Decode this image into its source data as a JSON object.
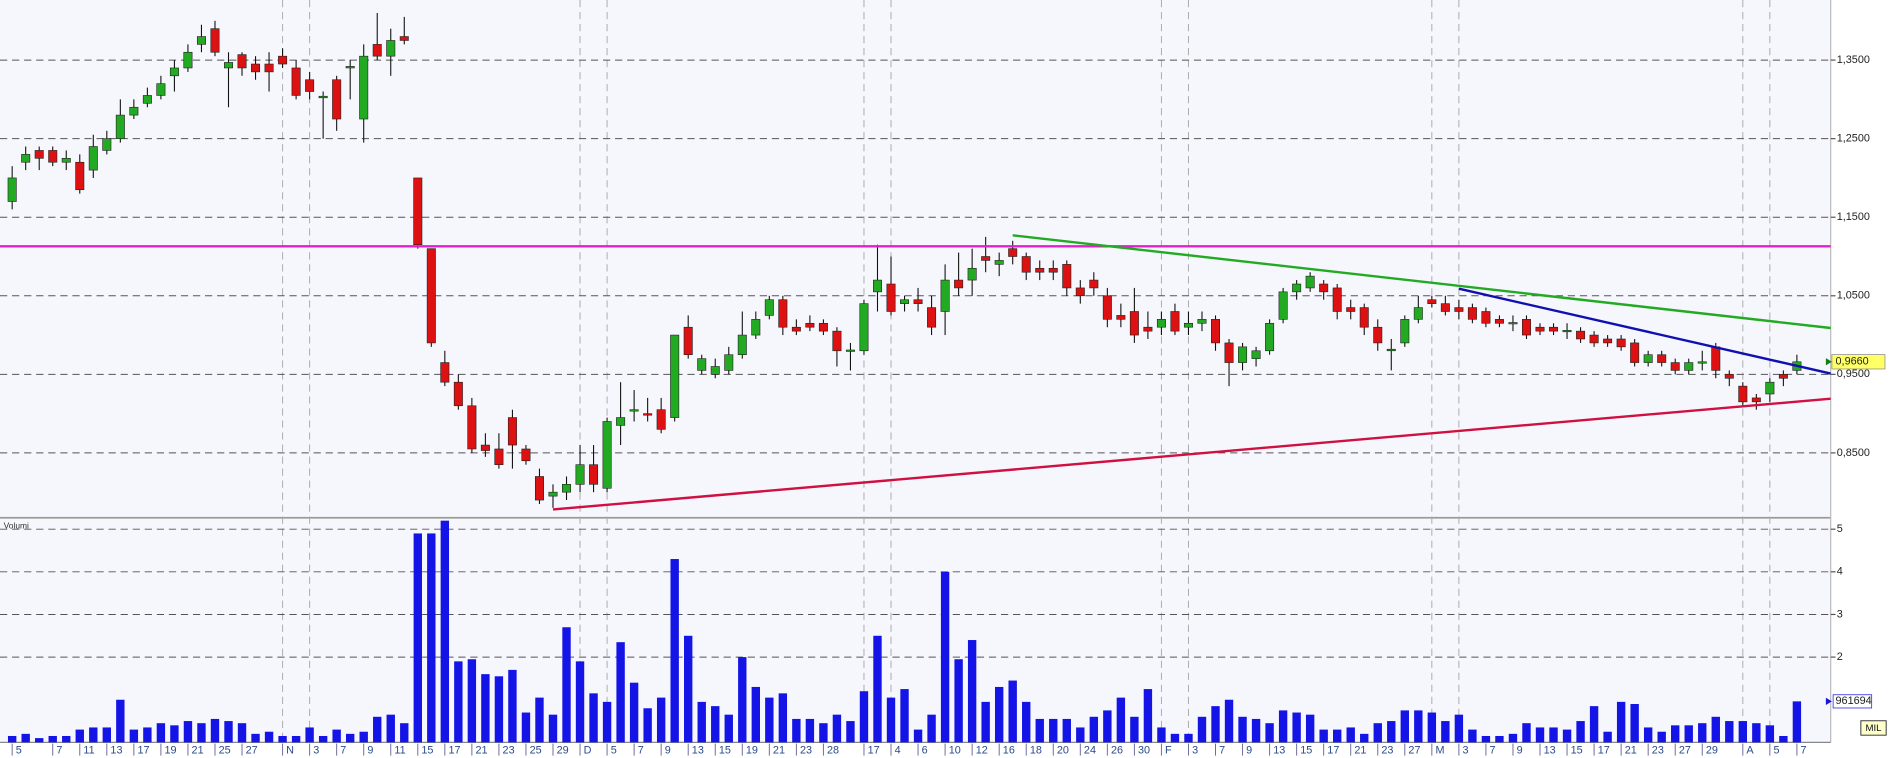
{
  "chart_data": [
    {
      "type": "candlestick",
      "categories": [
        "5",
        null,
        null,
        "7",
        null,
        "11",
        null,
        "13",
        null,
        "17",
        null,
        "19",
        null,
        "21",
        null,
        "25",
        null,
        "27",
        null,
        null,
        "N",
        null,
        "3",
        null,
        "7",
        null,
        "9",
        null,
        "11",
        null,
        "15",
        null,
        "17",
        null,
        "21",
        null,
        "23",
        null,
        "25",
        null,
        "29",
        null,
        "D",
        null,
        "5",
        null,
        "7",
        null,
        "9",
        null,
        "13",
        null,
        "15",
        null,
        "19",
        null,
        "21",
        null,
        "23",
        null,
        "28",
        null,
        null,
        "17",
        null,
        "4",
        null,
        "6",
        null,
        "10",
        null,
        "12",
        null,
        "16",
        null,
        "18",
        null,
        "20",
        null,
        "24",
        null,
        "26",
        null,
        "30",
        null,
        "F",
        null,
        "3",
        null,
        "7",
        null,
        "9",
        null,
        "13",
        null,
        "15",
        null,
        "17",
        null,
        "21",
        null,
        "23",
        null,
        "27",
        null,
        "M",
        null,
        "3",
        null,
        "7",
        null,
        "9",
        null,
        "13",
        null,
        "15",
        null,
        "17",
        null,
        "21",
        null,
        "23",
        null,
        "27",
        null,
        "29",
        null,
        null,
        "A",
        null,
        "5",
        null,
        "7"
      ],
      "ohlc": [
        [
          1.17,
          1.215,
          1.16,
          1.2
        ],
        [
          1.22,
          1.24,
          1.21,
          1.23
        ],
        [
          1.235,
          1.24,
          1.21,
          1.225
        ],
        [
          1.235,
          1.24,
          1.215,
          1.22
        ],
        [
          1.22,
          1.235,
          1.21,
          1.225
        ],
        [
          1.22,
          1.23,
          1.18,
          1.185
        ],
        [
          1.21,
          1.255,
          1.2,
          1.24
        ],
        [
          1.235,
          1.26,
          1.23,
          1.25
        ],
        [
          1.25,
          1.3,
          1.245,
          1.28
        ],
        [
          1.28,
          1.3,
          1.275,
          1.29
        ],
        [
          1.295,
          1.315,
          1.29,
          1.305
        ],
        [
          1.305,
          1.33,
          1.3,
          1.32
        ],
        [
          1.33,
          1.35,
          1.31,
          1.34
        ],
        [
          1.34,
          1.37,
          1.335,
          1.36
        ],
        [
          1.37,
          1.395,
          1.36,
          1.38
        ],
        [
          1.39,
          1.4,
          1.355,
          1.36
        ],
        [
          1.34,
          1.36,
          1.29,
          1.347
        ],
        [
          1.357,
          1.36,
          1.33,
          1.34
        ],
        [
          1.345,
          1.355,
          1.325,
          1.335
        ],
        [
          1.345,
          1.36,
          1.31,
          1.335
        ],
        [
          1.355,
          1.365,
          1.34,
          1.345
        ],
        [
          1.34,
          1.35,
          1.3,
          1.305
        ],
        [
          1.325,
          1.335,
          1.3,
          1.31
        ],
        [
          1.302,
          1.31,
          1.25,
          1.304
        ],
        [
          1.325,
          1.33,
          1.26,
          1.275
        ],
        [
          1.34,
          1.35,
          1.3,
          1.342
        ],
        [
          1.275,
          1.37,
          1.245,
          1.355
        ],
        [
          1.37,
          1.41,
          1.35,
          1.355
        ],
        [
          1.355,
          1.39,
          1.33,
          1.375
        ],
        [
          1.38,
          1.405,
          1.37,
          1.375
        ],
        [
          1.2,
          1.2,
          1.11,
          1.115
        ],
        [
          1.11,
          1.11,
          0.985,
          0.99
        ],
        [
          0.965,
          0.98,
          0.935,
          0.94
        ],
        [
          0.94,
          0.95,
          0.905,
          0.91
        ],
        [
          0.91,
          0.92,
          0.85,
          0.855
        ],
        [
          0.86,
          0.875,
          0.845,
          0.853
        ],
        [
          0.855,
          0.875,
          0.83,
          0.835
        ],
        [
          0.895,
          0.905,
          0.83,
          0.86
        ],
        [
          0.855,
          0.86,
          0.835,
          0.84
        ],
        [
          0.82,
          0.83,
          0.785,
          0.79
        ],
        [
          0.795,
          0.81,
          0.78,
          0.8
        ],
        [
          0.8,
          0.82,
          0.79,
          0.81
        ],
        [
          0.81,
          0.86,
          0.8,
          0.835
        ],
        [
          0.835,
          0.86,
          0.8,
          0.81
        ],
        [
          0.805,
          0.895,
          0.8,
          0.89
        ],
        [
          0.885,
          0.94,
          0.86,
          0.895
        ],
        [
          0.905,
          0.93,
          0.89,
          0.905
        ],
        [
          0.9,
          0.92,
          0.89,
          0.898
        ],
        [
          0.905,
          0.92,
          0.875,
          0.88
        ],
        [
          0.895,
          1.0,
          0.89,
          1.0
        ],
        [
          1.01,
          1.025,
          0.97,
          0.975
        ],
        [
          0.955,
          0.975,
          0.95,
          0.97
        ],
        [
          0.95,
          0.97,
          0.945,
          0.96
        ],
        [
          0.955,
          0.985,
          0.95,
          0.975
        ],
        [
          0.975,
          1.03,
          0.97,
          1.0
        ],
        [
          1.0,
          1.03,
          0.995,
          1.02
        ],
        [
          1.025,
          1.05,
          1.02,
          1.045
        ],
        [
          1.045,
          1.05,
          1.0,
          1.01
        ],
        [
          1.01,
          1.02,
          1.0,
          1.005
        ],
        [
          1.015,
          1.025,
          1.005,
          1.01
        ],
        [
          1.015,
          1.02,
          1.0,
          1.005
        ],
        [
          1.005,
          1.01,
          0.96,
          0.98
        ],
        [
          0.98,
          0.99,
          0.955,
          0.981
        ],
        [
          0.98,
          1.045,
          0.975,
          1.04
        ],
        [
          1.055,
          1.115,
          1.03,
          1.07
        ],
        [
          1.065,
          1.1,
          1.025,
          1.03
        ],
        [
          1.04,
          1.05,
          1.03,
          1.045
        ],
        [
          1.045,
          1.06,
          1.03,
          1.04
        ],
        [
          1.035,
          1.05,
          1.0,
          1.01
        ],
        [
          1.03,
          1.09,
          1.0,
          1.07
        ],
        [
          1.07,
          1.105,
          1.05,
          1.06
        ],
        [
          1.07,
          1.11,
          1.05,
          1.085
        ],
        [
          1.1,
          1.125,
          1.08,
          1.095
        ],
        [
          1.09,
          1.105,
          1.075,
          1.095
        ],
        [
          1.11,
          1.12,
          1.09,
          1.1
        ],
        [
          1.1,
          1.105,
          1.07,
          1.08
        ],
        [
          1.085,
          1.095,
          1.07,
          1.08
        ],
        [
          1.085,
          1.095,
          1.07,
          1.08
        ],
        [
          1.09,
          1.095,
          1.05,
          1.06
        ],
        [
          1.06,
          1.07,
          1.04,
          1.05
        ],
        [
          1.07,
          1.08,
          1.05,
          1.06
        ],
        [
          1.05,
          1.06,
          1.01,
          1.02
        ],
        [
          1.025,
          1.04,
          1.01,
          1.02
        ],
        [
          1.03,
          1.06,
          0.99,
          1.0
        ],
        [
          1.01,
          1.03,
          0.995,
          1.005
        ],
        [
          1.01,
          1.03,
          1.0,
          1.02
        ],
        [
          1.03,
          1.04,
          1.0,
          1.005
        ],
        [
          1.01,
          1.03,
          1.0,
          1.015
        ],
        [
          1.015,
          1.03,
          1.005,
          1.02
        ],
        [
          1.02,
          1.025,
          0.98,
          0.99
        ],
        [
          0.99,
          0.995,
          0.935,
          0.965
        ],
        [
          0.965,
          0.99,
          0.955,
          0.985
        ],
        [
          0.97,
          0.985,
          0.96,
          0.98
        ],
        [
          0.98,
          1.02,
          0.975,
          1.015
        ],
        [
          1.02,
          1.06,
          1.015,
          1.055
        ],
        [
          1.055,
          1.07,
          1.045,
          1.065
        ],
        [
          1.06,
          1.08,
          1.055,
          1.075
        ],
        [
          1.065,
          1.07,
          1.045,
          1.055
        ],
        [
          1.06,
          1.065,
          1.02,
          1.03
        ],
        [
          1.035,
          1.045,
          1.02,
          1.03
        ],
        [
          1.035,
          1.04,
          1.0,
          1.01
        ],
        [
          1.01,
          1.02,
          0.98,
          0.99
        ],
        [
          0.98,
          0.995,
          0.955,
          0.982
        ],
        [
          0.99,
          1.025,
          0.985,
          1.02
        ],
        [
          1.02,
          1.05,
          1.015,
          1.035
        ],
        [
          1.045,
          1.05,
          1.035,
          1.04
        ],
        [
          1.04,
          1.05,
          1.025,
          1.03
        ],
        [
          1.035,
          1.045,
          1.02,
          1.03
        ],
        [
          1.035,
          1.04,
          1.015,
          1.02
        ],
        [
          1.03,
          1.035,
          1.01,
          1.015
        ],
        [
          1.02,
          1.025,
          1.01,
          1.015
        ],
        [
          1.015,
          1.025,
          1.005,
          1.016
        ],
        [
          1.02,
          1.025,
          0.995,
          1.0
        ],
        [
          1.01,
          1.015,
          1.0,
          1.005
        ],
        [
          1.01,
          1.015,
          1.0,
          1.005
        ],
        [
          1.005,
          1.015,
          0.995,
          1.006
        ],
        [
          1.005,
          1.01,
          0.99,
          0.995
        ],
        [
          1.0,
          1.005,
          0.985,
          0.99
        ],
        [
          0.995,
          1.0,
          0.985,
          0.99
        ],
        [
          0.995,
          1.0,
          0.98,
          0.985
        ],
        [
          0.99,
          0.995,
          0.96,
          0.965
        ],
        [
          0.965,
          0.98,
          0.96,
          0.975
        ],
        [
          0.975,
          0.98,
          0.96,
          0.965
        ],
        [
          0.965,
          0.97,
          0.95,
          0.955
        ],
        [
          0.955,
          0.97,
          0.95,
          0.965
        ],
        [
          0.965,
          0.98,
          0.955,
          0.966
        ],
        [
          0.985,
          0.99,
          0.945,
          0.955
        ],
        [
          0.95,
          0.955,
          0.935,
          0.945
        ],
        [
          0.935,
          0.94,
          0.91,
          0.915
        ],
        [
          0.92,
          0.925,
          0.905,
          0.915
        ],
        [
          0.925,
          0.945,
          0.915,
          0.94
        ],
        [
          0.95,
          0.955,
          0.935,
          0.945
        ],
        [
          0.955,
          0.975,
          0.95,
          0.966
        ]
      ],
      "up_color": "#22aa22",
      "down_color": "#dd1111",
      "xlim": [
        -0.9,
        134.5
      ],
      "ylim": [
        0.769,
        1.4265
      ],
      "yticks": [
        {
          "value": 0.85,
          "label": "0,8500"
        },
        {
          "value": 0.95,
          "label": "0,9500"
        },
        {
          "value": 1.05,
          "label": "1,0500"
        },
        {
          "value": 1.15,
          "label": "1,1500"
        },
        {
          "value": 1.25,
          "label": "1,2500"
        },
        {
          "value": 1.35,
          "label": "1,3500"
        }
      ],
      "grid": true,
      "last_label": "0,9660",
      "lines": [
        {
          "color": "#e020c8",
          "x": [
            -0.9,
            134.5
          ],
          "y": [
            1.113,
            1.113
          ]
        },
        {
          "color": "#22aa22",
          "x": [
            74,
            134.5
          ],
          "y": [
            1.127,
            1.009
          ]
        },
        {
          "color": "#1010b0",
          "x": [
            107,
            134.5
          ],
          "y": [
            1.059,
            0.951
          ]
        },
        {
          "color": "#d01040",
          "x": [
            40,
            134.5
          ],
          "y": [
            0.778,
            0.919
          ]
        }
      ]
    },
    {
      "type": "bar",
      "title": "Volumi",
      "unit": "MIL",
      "color": "#1414e6",
      "values": [
        0.15,
        0.2,
        0.1,
        0.15,
        0.15,
        0.3,
        0.35,
        0.35,
        1.0,
        0.3,
        0.35,
        0.45,
        0.4,
        0.5,
        0.45,
        0.55,
        0.5,
        0.45,
        0.2,
        0.25,
        0.15,
        0.15,
        0.35,
        0.15,
        0.3,
        0.2,
        0.25,
        0.6,
        0.65,
        0.45,
        4.9,
        4.9,
        5.2,
        1.9,
        1.95,
        1.6,
        1.55,
        1.7,
        0.7,
        1.05,
        0.65,
        2.7,
        1.9,
        1.15,
        0.95,
        2.35,
        1.4,
        0.8,
        1.05,
        4.3,
        2.5,
        0.95,
        0.85,
        0.65,
        2.0,
        1.3,
        1.05,
        1.15,
        0.55,
        0.55,
        0.45,
        0.65,
        0.5,
        1.2,
        2.5,
        1.05,
        1.25,
        0.3,
        0.65,
        4.0,
        1.95,
        2.4,
        0.95,
        1.3,
        1.45,
        0.95,
        0.55,
        0.55,
        0.55,
        0.35,
        0.6,
        0.75,
        1.05,
        0.6,
        1.25,
        0.35,
        0.2,
        0.2,
        0.6,
        0.85,
        1.0,
        0.6,
        0.55,
        0.45,
        0.75,
        0.7,
        0.65,
        0.3,
        0.3,
        0.35,
        0.2,
        0.45,
        0.5,
        0.75,
        0.75,
        0.7,
        0.5,
        0.65,
        0.3,
        0.15,
        0.15,
        0.2,
        0.45,
        0.35,
        0.35,
        0.3,
        0.5,
        0.85,
        0.25,
        0.95,
        0.9,
        0.35,
        0.25,
        0.4,
        0.4,
        0.45,
        0.6,
        0.5,
        0.5,
        0.45,
        0.4,
        0.15,
        0.961694
      ],
      "last_label": "961694",
      "ylim": [
        0,
        5.24
      ],
      "yticks": [
        2,
        3,
        4,
        5
      ],
      "grid": true
    }
  ]
}
